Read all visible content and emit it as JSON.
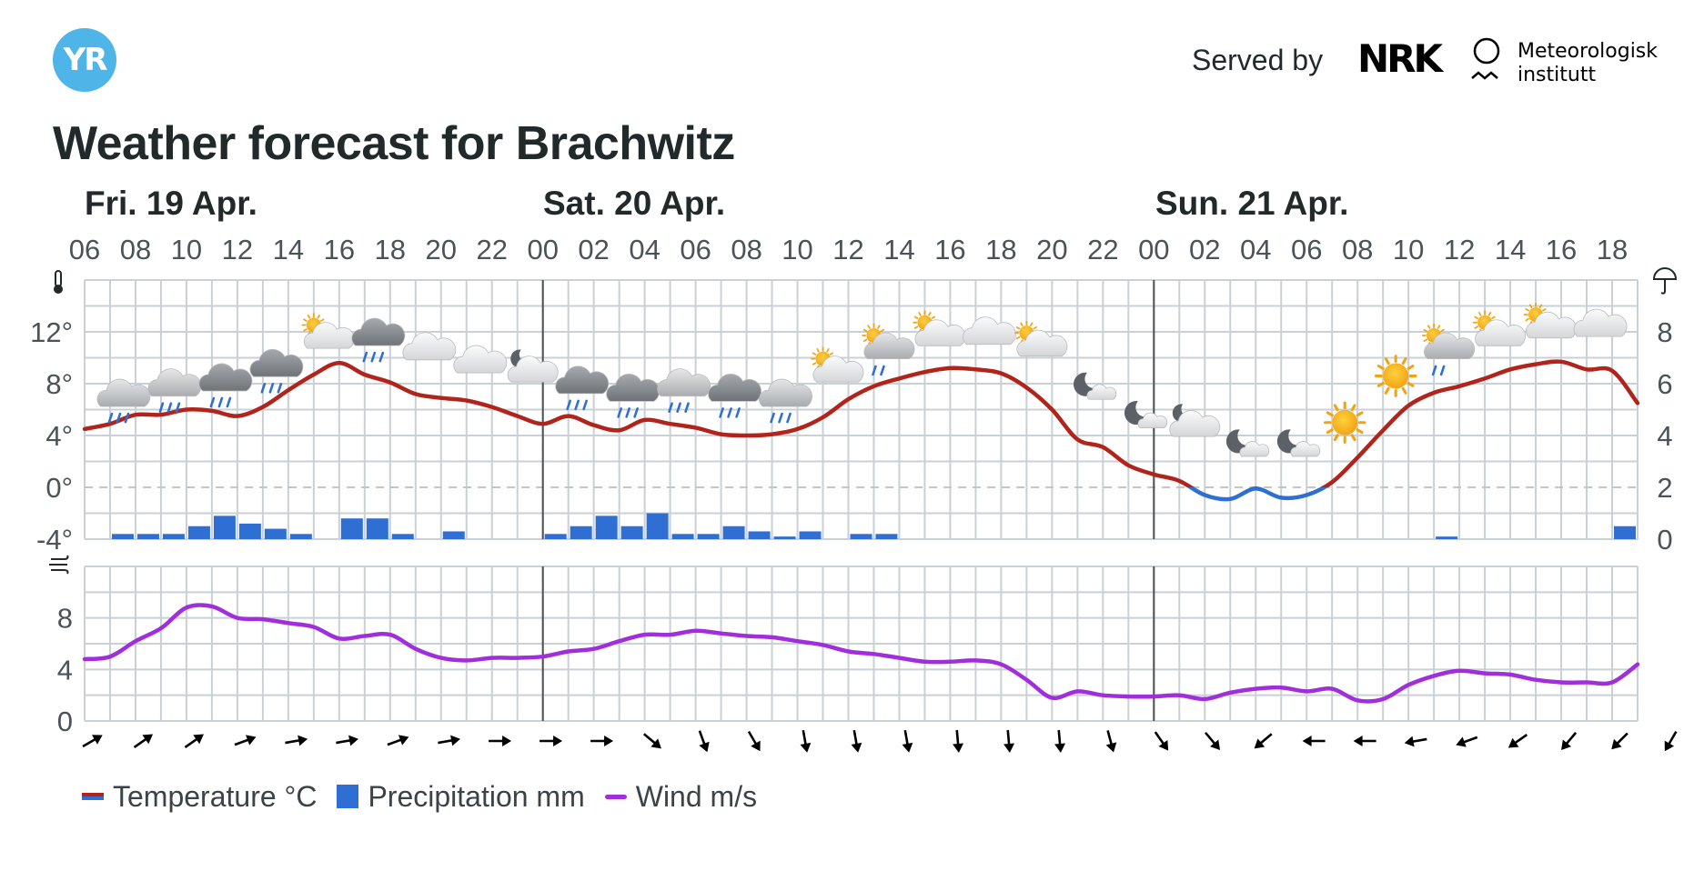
{
  "header": {
    "logo_text": "YR",
    "served_by": "Served by",
    "nrk_logo_text": "NRK",
    "met_line1": "Meteorologisk",
    "met_line2": "institutt",
    "title": "Weather forecast for Brachwitz"
  },
  "colors": {
    "temp_warm": "#b0241b",
    "temp_cold": "#2f6fd4",
    "precip": "#2f6fd4",
    "wind": "#a02fdb",
    "grid": "#c9d0d6",
    "text": "#21292b"
  },
  "chart_data": {
    "type": "line",
    "days": [
      {
        "label": "Fri. 19 Apr.",
        "start_hour_index": 0
      },
      {
        "label": "Sat. 20 Apr.",
        "start_hour_index": 18
      },
      {
        "label": "Sun. 21 Apr.",
        "start_hour_index": 42
      }
    ],
    "hour_labels": [
      "06",
      "08",
      "10",
      "12",
      "14",
      "16",
      "18",
      "20",
      "22",
      "00",
      "02",
      "04",
      "06",
      "08",
      "10",
      "12",
      "14",
      "16",
      "18",
      "20",
      "22",
      "00",
      "02",
      "04",
      "06",
      "08",
      "10",
      "12",
      "14",
      "16",
      "18"
    ],
    "hour_start": 0,
    "hour_end": 61,
    "temp_axis": {
      "ticks": [
        "12°",
        "8°",
        "4°",
        "0°",
        "-4°"
      ],
      "values": [
        12,
        8,
        4,
        0,
        -4
      ],
      "ylim": [
        -4,
        16
      ],
      "icon": "thermometer-icon"
    },
    "precip_axis": {
      "ticks": [
        "8",
        "6",
        "4",
        "2",
        "0"
      ],
      "values": [
        8,
        6,
        4,
        2,
        0
      ],
      "ylim": [
        0,
        10
      ],
      "icon": "umbrella-icon"
    },
    "wind_axis": {
      "ticks": [
        "8",
        "4",
        "0"
      ],
      "values": [
        8,
        4,
        0
      ],
      "ylim": [
        0,
        12
      ],
      "icon": "wind-icon"
    },
    "temperature": {
      "hours": [
        0,
        1,
        2,
        3,
        4,
        5,
        6,
        7,
        8,
        9,
        10,
        11,
        12,
        13,
        14,
        15,
        16,
        17,
        18,
        19,
        20,
        21,
        22,
        23,
        24,
        25,
        26,
        27,
        28,
        29,
        30,
        31,
        32,
        33,
        34,
        35,
        36,
        37,
        38,
        39,
        40,
        41,
        42,
        43,
        44,
        45,
        46,
        47,
        48,
        49,
        50,
        51,
        52,
        53,
        54,
        55,
        56,
        57,
        58,
        59,
        60,
        61
      ],
      "values": [
        4.5,
        4.9,
        5.6,
        5.6,
        6.0,
        5.9,
        5.5,
        6.2,
        7.5,
        8.7,
        9.6,
        8.7,
        8.1,
        7.2,
        6.9,
        6.7,
        6.2,
        5.5,
        4.9,
        5.5,
        4.8,
        4.4,
        5.2,
        4.9,
        4.6,
        4.1,
        4.0,
        4.1,
        4.5,
        5.4,
        6.8,
        7.8,
        8.4,
        8.9,
        9.2,
        9.1,
        8.8,
        7.7,
        6.0,
        3.7,
        3.1,
        1.7,
        1.0,
        0.5,
        -0.6,
        -0.9,
        -0.1,
        -0.8,
        -0.6,
        0.4,
        2.3,
        4.4,
        6.3,
        7.3,
        7.8,
        8.4,
        9.1,
        9.5,
        9.7,
        9.1,
        9.0,
        6.5
      ]
    },
    "precipitation": {
      "hours": [
        1,
        2,
        3,
        4,
        5,
        6,
        7,
        8,
        10,
        11,
        12,
        14,
        18,
        19,
        20,
        21,
        22,
        23,
        24,
        25,
        26,
        27,
        28,
        30,
        31,
        53,
        60
      ],
      "values": [
        0.2,
        0.2,
        0.2,
        0.5,
        0.9,
        0.6,
        0.4,
        0.2,
        0.8,
        0.8,
        0.2,
        0.3,
        0.2,
        0.5,
        0.9,
        0.5,
        1.0,
        0.2,
        0.2,
        0.5,
        0.3,
        0.1,
        0.3,
        0.2,
        0.2,
        0.1,
        0.5
      ]
    },
    "wind": {
      "hours": [
        0,
        1,
        2,
        3,
        4,
        5,
        6,
        7,
        8,
        9,
        10,
        11,
        12,
        13,
        14,
        15,
        16,
        17,
        18,
        19,
        20,
        21,
        22,
        23,
        24,
        25,
        26,
        27,
        28,
        29,
        30,
        31,
        32,
        33,
        34,
        35,
        36,
        37,
        38,
        39,
        40,
        41,
        42,
        43,
        44,
        45,
        46,
        47,
        48,
        49,
        50,
        51,
        52,
        53,
        54,
        55,
        56,
        57,
        58,
        59,
        60,
        61
      ],
      "values": [
        4.8,
        5.0,
        6.2,
        7.2,
        8.8,
        8.9,
        8.0,
        7.9,
        7.6,
        7.3,
        6.4,
        6.6,
        6.7,
        5.6,
        4.9,
        4.7,
        4.9,
        4.9,
        5.0,
        5.4,
        5.6,
        6.2,
        6.7,
        6.7,
        7.0,
        6.8,
        6.6,
        6.5,
        6.2,
        5.9,
        5.4,
        5.2,
        4.9,
        4.6,
        4.6,
        4.7,
        4.4,
        3.2,
        1.8,
        2.3,
        2.0,
        1.9,
        1.9,
        2.0,
        1.7,
        2.2,
        2.5,
        2.6,
        2.3,
        2.5,
        1.6,
        1.7,
        2.8,
        3.5,
        3.9,
        3.7,
        3.6,
        3.2,
        3.0,
        3.0,
        3.0,
        4.4
      ]
    },
    "wind_directions_deg_toward": [
      60,
      55,
      55,
      70,
      80,
      80,
      70,
      80,
      90,
      90,
      90,
      130,
      160,
      150,
      170,
      170,
      170,
      175,
      175,
      175,
      165,
      145,
      140,
      230,
      270,
      270,
      260,
      250,
      235,
      220,
      225,
      210,
      215
    ],
    "weather_icons": [
      {
        "hour": 1,
        "temp": 6.8,
        "type": "rain"
      },
      {
        "hour": 3,
        "temp": 7.6,
        "type": "rain"
      },
      {
        "hour": 5,
        "temp": 8.0,
        "type": "rain-dark"
      },
      {
        "hour": 7,
        "temp": 9.1,
        "type": "rain-dark"
      },
      {
        "hour": 9,
        "temp": 11.4,
        "type": "partly-cloudy-day"
      },
      {
        "hour": 11,
        "temp": 11.5,
        "type": "rain-dark"
      },
      {
        "hour": 13,
        "temp": 10.4,
        "type": "cloudy"
      },
      {
        "hour": 15,
        "temp": 9.4,
        "type": "cloudy"
      },
      {
        "hour": 17,
        "temp": 8.8,
        "type": "partly-cloudy-night"
      },
      {
        "hour": 19,
        "temp": 7.8,
        "type": "rain-dark"
      },
      {
        "hour": 21,
        "temp": 7.2,
        "type": "rain-dark"
      },
      {
        "hour": 23,
        "temp": 7.6,
        "type": "rain"
      },
      {
        "hour": 25,
        "temp": 7.2,
        "type": "rain-dark"
      },
      {
        "hour": 27,
        "temp": 6.8,
        "type": "rain"
      },
      {
        "hour": 29,
        "temp": 8.8,
        "type": "partly-cloudy-day"
      },
      {
        "hour": 31,
        "temp": 10.6,
        "type": "partly-cloudy-rain"
      },
      {
        "hour": 33,
        "temp": 11.6,
        "type": "partly-cloudy-day"
      },
      {
        "hour": 35,
        "temp": 11.6,
        "type": "cloudy"
      },
      {
        "hour": 37,
        "temp": 10.8,
        "type": "partly-cloudy-day"
      },
      {
        "hour": 39,
        "temp": 7.8,
        "type": "clear-night"
      },
      {
        "hour": 41,
        "temp": 5.6,
        "type": "clear-night"
      },
      {
        "hour": 43,
        "temp": 4.6,
        "type": "partly-cloudy-night"
      },
      {
        "hour": 45,
        "temp": 3.4,
        "type": "clear-night"
      },
      {
        "hour": 47,
        "temp": 3.4,
        "type": "clear-night"
      },
      {
        "hour": 49,
        "temp": 5.0,
        "type": "sun"
      },
      {
        "hour": 51,
        "temp": 8.6,
        "type": "sun"
      },
      {
        "hour": 53,
        "temp": 10.6,
        "type": "partly-cloudy-rain"
      },
      {
        "hour": 55,
        "temp": 11.6,
        "type": "partly-cloudy-day"
      },
      {
        "hour": 57,
        "temp": 12.2,
        "type": "partly-cloudy-day"
      },
      {
        "hour": 59,
        "temp": 12.2,
        "type": "cloudy"
      }
    ]
  },
  "legend": {
    "temperature": "Temperature °C",
    "precipitation": "Precipitation mm",
    "wind": "Wind m/s"
  }
}
